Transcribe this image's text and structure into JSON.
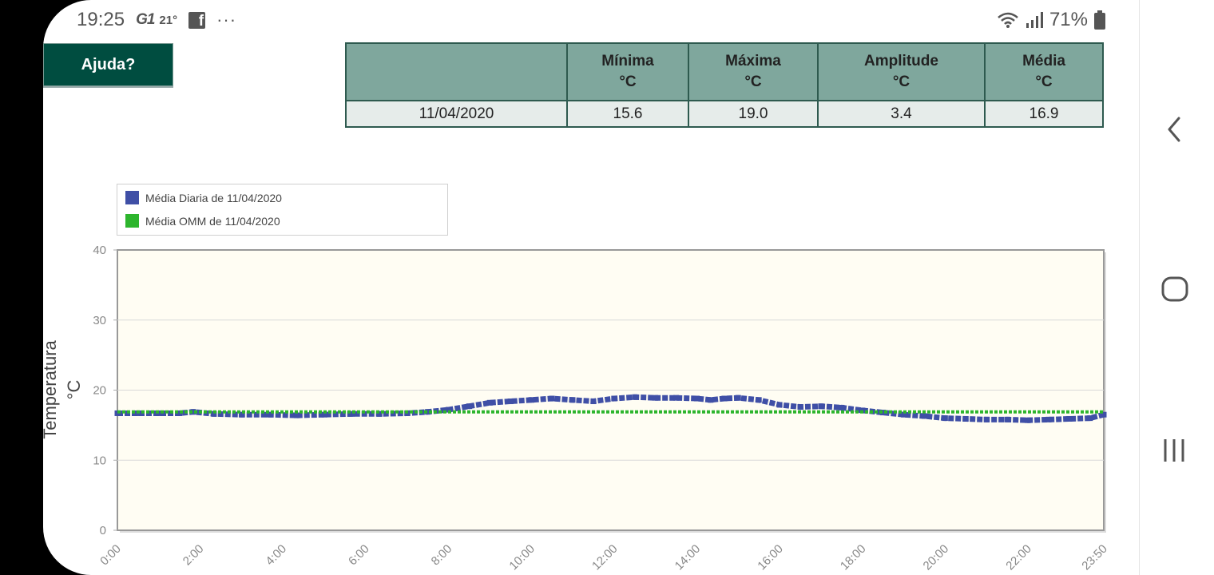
{
  "status_bar": {
    "time": "19:25",
    "news_icon_text": "G1",
    "weather": "21°",
    "facebook_icon_text": "f",
    "more": "···",
    "battery": "71%"
  },
  "help_button": {
    "label": "Ajuda?"
  },
  "table": {
    "headers": [
      {
        "name": "",
        "unit": ""
      },
      {
        "name": "Mínima",
        "unit": "°C"
      },
      {
        "name": "Máxima",
        "unit": "°C"
      },
      {
        "name": "Amplitude",
        "unit": "°C"
      },
      {
        "name": "Média",
        "unit": "°C"
      }
    ],
    "row": [
      "11/04/2020",
      "15.6",
      "19.0",
      "3.4",
      "16.9"
    ]
  },
  "legend": {
    "items": [
      {
        "label": "Média Diaria de 11/04/2020",
        "color": "#3f4fa6"
      },
      {
        "label": "Média OMM de 11/04/2020",
        "color": "#2db52d"
      }
    ]
  },
  "chart_data": {
    "type": "line",
    "ylabel_line1": "Temperatura",
    "ylabel_line2": "°C",
    "ylim": [
      0,
      40
    ],
    "yticks": [
      "0",
      "10",
      "20",
      "30",
      "40"
    ],
    "xticks": [
      "0:00",
      "2:00",
      "4:00",
      "6:00",
      "8:00",
      "10:00",
      "12:00",
      "14:00",
      "16:00",
      "18:00",
      "20:00",
      "22:00",
      "23:50"
    ],
    "xlim_minutes": [
      0,
      1430
    ],
    "grid": true,
    "legend_position": "top-left",
    "plot_background": "#fffdf3",
    "series": [
      {
        "name": "Média Diaria de 11/04/2020",
        "color": "#3f4fa6",
        "points": [
          [
            0,
            16.7
          ],
          [
            30,
            16.7
          ],
          [
            60,
            16.7
          ],
          [
            90,
            16.7
          ],
          [
            110,
            16.9
          ],
          [
            140,
            16.6
          ],
          [
            180,
            16.5
          ],
          [
            220,
            16.5
          ],
          [
            260,
            16.4
          ],
          [
            300,
            16.5
          ],
          [
            340,
            16.6
          ],
          [
            380,
            16.6
          ],
          [
            420,
            16.7
          ],
          [
            450,
            16.9
          ],
          [
            480,
            17.2
          ],
          [
            510,
            17.7
          ],
          [
            540,
            18.2
          ],
          [
            570,
            18.4
          ],
          [
            600,
            18.6
          ],
          [
            630,
            18.8
          ],
          [
            660,
            18.6
          ],
          [
            690,
            18.4
          ],
          [
            720,
            18.8
          ],
          [
            750,
            19.0
          ],
          [
            780,
            18.9
          ],
          [
            810,
            18.9
          ],
          [
            840,
            18.8
          ],
          [
            860,
            18.6
          ],
          [
            880,
            18.8
          ],
          [
            900,
            18.9
          ],
          [
            930,
            18.6
          ],
          [
            960,
            17.9
          ],
          [
            990,
            17.6
          ],
          [
            1020,
            17.7
          ],
          [
            1050,
            17.5
          ],
          [
            1080,
            17.1
          ],
          [
            1110,
            16.8
          ],
          [
            1140,
            16.5
          ],
          [
            1170,
            16.3
          ],
          [
            1200,
            16.0
          ],
          [
            1230,
            15.9
          ],
          [
            1260,
            15.8
          ],
          [
            1290,
            15.8
          ],
          [
            1320,
            15.7
          ],
          [
            1350,
            15.8
          ],
          [
            1380,
            15.9
          ],
          [
            1410,
            16.0
          ],
          [
            1430,
            16.5
          ]
        ]
      },
      {
        "name": "Média OMM de 11/04/2020",
        "color": "#2db52d",
        "points": [
          [
            0,
            16.9
          ],
          [
            1430,
            16.9
          ]
        ]
      }
    ]
  }
}
